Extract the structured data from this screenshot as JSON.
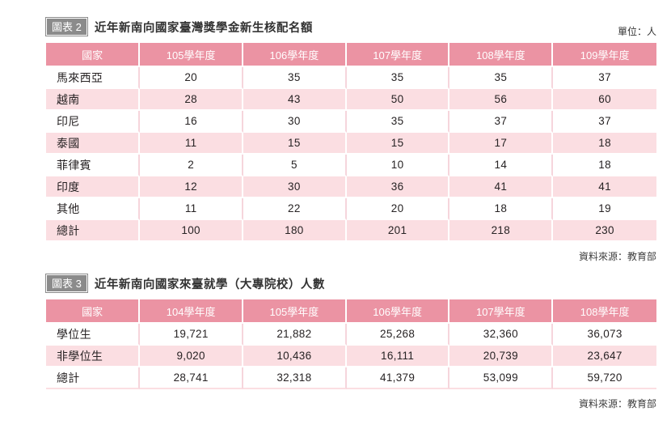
{
  "colors": {
    "header_pink": "#eb93a3",
    "row_pink": "#fbdee2",
    "divider_light_pink": "#f6d5dc",
    "badge_gray": "#8b8b8b",
    "text_dark": "#272324",
    "white": "#ffffff"
  },
  "tables": [
    {
      "badge": "圖表 2",
      "title": "近年新南向國家臺灣獎學金新生核配名額",
      "unit": "單位：人",
      "columns": [
        "國家",
        "105學年度",
        "106學年度",
        "107學年度",
        "108學年度",
        "109學年度"
      ],
      "rows": [
        [
          "馬來西亞",
          "20",
          "35",
          "35",
          "35",
          "37"
        ],
        [
          "越南",
          "28",
          "43",
          "50",
          "56",
          "60"
        ],
        [
          "印尼",
          "16",
          "30",
          "35",
          "37",
          "37"
        ],
        [
          "泰國",
          "11",
          "15",
          "15",
          "17",
          "18"
        ],
        [
          "菲律賓",
          "2",
          "5",
          "10",
          "14",
          "18"
        ],
        [
          "印度",
          "12",
          "30",
          "36",
          "41",
          "41"
        ],
        [
          "其他",
          "11",
          "22",
          "20",
          "18",
          "19"
        ],
        [
          "總計",
          "100",
          "180",
          "201",
          "218",
          "230"
        ]
      ],
      "source": "資料來源：教育部"
    },
    {
      "badge": "圖表 3",
      "title": "近年新南向國家來臺就學（大專院校）人數",
      "unit": "",
      "columns": [
        "國家",
        "104學年度",
        "105學年度",
        "106學年度",
        "107學年度",
        "108學年度"
      ],
      "rows": [
        [
          "學位生",
          "19,721",
          "21,882",
          "25,268",
          "32,360",
          "36,073"
        ],
        [
          "非學位生",
          "9,020",
          "10,436",
          "16,111",
          "20,739",
          "23,647"
        ],
        [
          "總計",
          "28,741",
          "32,318",
          "41,379",
          "53,099",
          "59,720"
        ]
      ],
      "source": "資料來源：教育部"
    }
  ]
}
